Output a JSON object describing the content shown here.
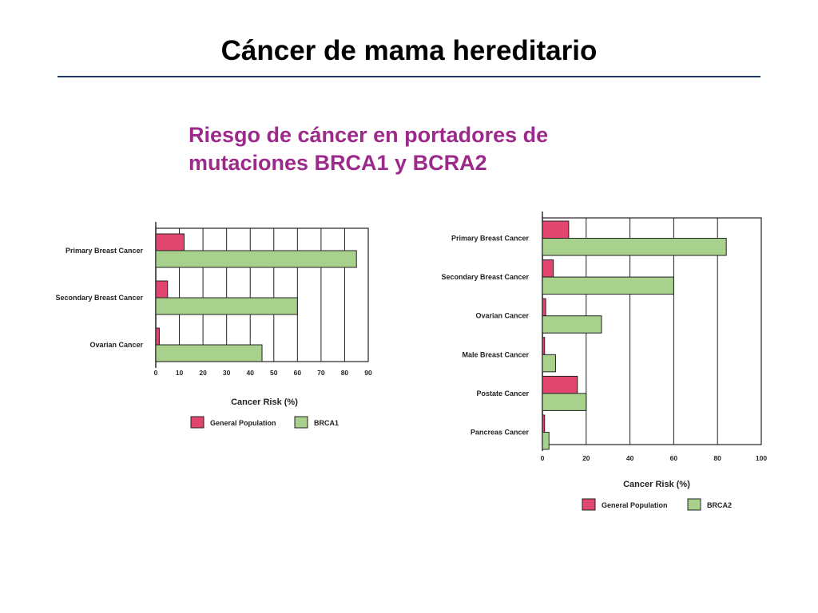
{
  "slide": {
    "title": "Cáncer de mama hereditario",
    "subtitle_line1": "Riesgo de cáncer en portadores de",
    "subtitle_line2": "mutaciones BRCA1 y BCRA2"
  },
  "colors": {
    "general_population": "#e0466e",
    "carrier": "#a9d18e",
    "subtitle": "#9c2a8a",
    "rule": "#1f3a68"
  },
  "chart_data": [
    {
      "type": "bar",
      "orientation": "horizontal",
      "categories": [
        "Primary Breast Cancer",
        "Secondary Breast Cancer",
        "Ovarian Cancer"
      ],
      "series": [
        {
          "name": "General Population",
          "values": [
            12,
            5,
            1.5
          ]
        },
        {
          "name": "BRCA1",
          "values": [
            85,
            60,
            45
          ]
        }
      ],
      "xlabel": "Cancer Risk (%)",
      "xlim": [
        0,
        90
      ],
      "xticks": [
        0,
        10,
        20,
        30,
        40,
        50,
        60,
        70,
        80,
        90
      ],
      "grid": true,
      "legend": "bottom"
    },
    {
      "type": "bar",
      "orientation": "horizontal",
      "categories": [
        "Primary Breast Cancer",
        "Secondary Breast Cancer",
        "Ovarian Cancer",
        "Male Breast Cancer",
        "Postate Cancer",
        "Pancreas Cancer"
      ],
      "series": [
        {
          "name": "General Population",
          "values": [
            12,
            5,
            1.5,
            1,
            16,
            1
          ]
        },
        {
          "name": "BRCA2",
          "values": [
            84,
            60,
            27,
            6,
            20,
            3
          ]
        }
      ],
      "xlabel": "Cancer Risk (%)",
      "xlim": [
        0,
        100
      ],
      "xticks": [
        0,
        20,
        40,
        60,
        80,
        100
      ],
      "grid": true,
      "legend": "bottom"
    }
  ]
}
